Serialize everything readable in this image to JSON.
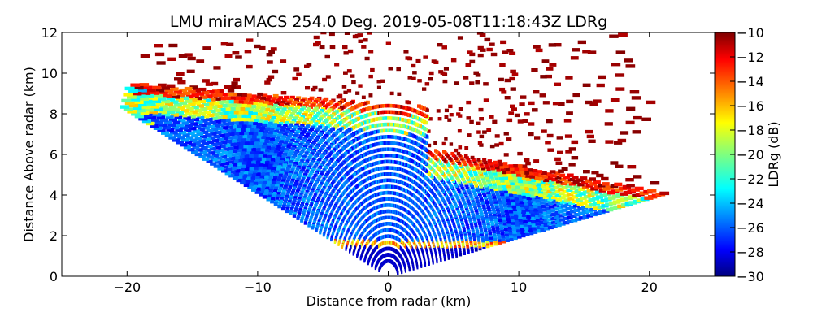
{
  "chart_data": {
    "type": "heatmap",
    "title": "LMU miraMACS 254.0 Deg. 2019-05-08T11:18:43Z  LDRg",
    "xlabel": "Distance from radar (km)",
    "ylabel": "Distance Above radar  (km)",
    "xlim": [
      -25,
      25
    ],
    "ylim": [
      0,
      12
    ],
    "x_ticks": [
      -20,
      -10,
      0,
      10,
      20
    ],
    "y_ticks": [
      0,
      2,
      4,
      6,
      8,
      10,
      12
    ],
    "x_tick_labels": [
      "−20",
      "−10",
      "0",
      "10",
      "20"
    ],
    "y_tick_labels": [
      "0",
      "2",
      "4",
      "6",
      "8",
      "10",
      "12"
    ],
    "colorbar": {
      "label": "LDRg (dB)",
      "range": [
        -30,
        -10
      ],
      "ticks": [
        -30,
        -28,
        -26,
        -24,
        -22,
        -20,
        -18,
        -16,
        -14,
        -12,
        -10
      ],
      "tick_labels": [
        "−30",
        "−28",
        "−26",
        "−24",
        "−22",
        "−20",
        "−18",
        "−16",
        "−14",
        "−12",
        "−10"
      ],
      "colormap": "jet"
    },
    "scan": {
      "elevation_deg": [
        10.5,
        158
      ],
      "max_range_km": 22,
      "cloud_base_km": 1.6,
      "cloud_top_km": 8.5,
      "left_edge_x_km": -22
    }
  }
}
